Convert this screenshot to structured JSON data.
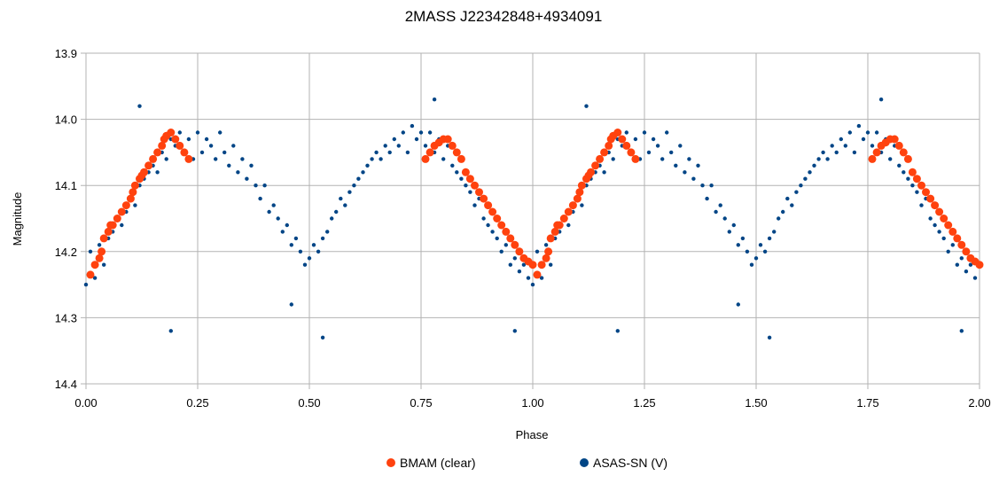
{
  "chart_data": {
    "type": "scatter",
    "title": "2MASS J22342848+4934091",
    "xlabel": "Phase",
    "ylabel": "Magnitude",
    "xlim": [
      0,
      2
    ],
    "ylim": [
      13.9,
      14.4
    ],
    "y_inverted": true,
    "grid": true,
    "legend_position": "bottom",
    "x_ticks": [
      "0.00",
      "0.25",
      "0.50",
      "0.75",
      "1.00",
      "1.25",
      "1.50",
      "1.75",
      "2.00"
    ],
    "y_ticks": [
      "13.9",
      "14.0",
      "14.1",
      "14.2",
      "14.3",
      "14.4"
    ],
    "series": [
      {
        "name": "BMAM (clear)",
        "color": "#ff420e",
        "marker": "circle-large",
        "x": [
          0.01,
          0.02,
          0.03,
          0.035,
          0.04,
          0.05,
          0.055,
          0.06,
          0.07,
          0.08,
          0.09,
          0.1,
          0.105,
          0.11,
          0.12,
          0.125,
          0.13,
          0.14,
          0.15,
          0.16,
          0.17,
          0.175,
          0.18,
          0.19,
          0.2,
          0.21,
          0.22,
          0.23,
          0.76,
          0.77,
          0.78,
          0.79,
          0.8,
          0.81,
          0.82,
          0.83,
          0.84,
          0.85,
          0.86,
          0.87,
          0.88,
          0.89,
          0.9,
          0.91,
          0.92,
          0.93,
          0.94,
          0.95,
          0.96,
          0.97,
          0.98,
          0.99,
          1.0
        ],
        "y": [
          14.235,
          14.22,
          14.21,
          14.2,
          14.18,
          14.17,
          14.16,
          14.16,
          14.15,
          14.14,
          14.13,
          14.12,
          14.11,
          14.1,
          14.09,
          14.085,
          14.08,
          14.07,
          14.06,
          14.05,
          14.04,
          14.03,
          14.025,
          14.02,
          14.03,
          14.04,
          14.05,
          14.06,
          14.06,
          14.05,
          14.04,
          14.035,
          14.03,
          14.03,
          14.04,
          14.05,
          14.06,
          14.08,
          14.09,
          14.1,
          14.11,
          14.12,
          14.13,
          14.14,
          14.15,
          14.16,
          14.17,
          14.18,
          14.19,
          14.2,
          14.21,
          14.215,
          14.22
        ]
      },
      {
        "name": "ASAS-SN (V)",
        "color": "#004586",
        "marker": "circle-small",
        "x": [
          0.0,
          0.01,
          0.02,
          0.03,
          0.04,
          0.05,
          0.06,
          0.07,
          0.08,
          0.09,
          0.1,
          0.11,
          0.12,
          0.13,
          0.14,
          0.15,
          0.16,
          0.17,
          0.18,
          0.19,
          0.2,
          0.21,
          0.22,
          0.23,
          0.24,
          0.25,
          0.26,
          0.27,
          0.28,
          0.29,
          0.3,
          0.31,
          0.32,
          0.33,
          0.34,
          0.35,
          0.36,
          0.37,
          0.38,
          0.39,
          0.4,
          0.41,
          0.42,
          0.43,
          0.44,
          0.45,
          0.46,
          0.47,
          0.48,
          0.49,
          0.5,
          0.51,
          0.52,
          0.53,
          0.54,
          0.55,
          0.56,
          0.57,
          0.58,
          0.59,
          0.6,
          0.61,
          0.62,
          0.63,
          0.64,
          0.65,
          0.66,
          0.67,
          0.68,
          0.69,
          0.7,
          0.71,
          0.72,
          0.73,
          0.74,
          0.75,
          0.76,
          0.77,
          0.78,
          0.79,
          0.8,
          0.81,
          0.82,
          0.83,
          0.84,
          0.85,
          0.86,
          0.87,
          0.88,
          0.89,
          0.9,
          0.91,
          0.92,
          0.93,
          0.94,
          0.95,
          0.96,
          0.97,
          0.98,
          0.99,
          0.19,
          0.12,
          0.53,
          0.46,
          0.78,
          0.96
        ],
        "y": [
          14.25,
          14.2,
          14.24,
          14.19,
          14.22,
          14.18,
          14.17,
          14.15,
          14.16,
          14.14,
          14.12,
          14.13,
          14.1,
          14.09,
          14.08,
          14.07,
          14.08,
          14.05,
          14.06,
          14.03,
          14.04,
          14.02,
          14.05,
          14.03,
          14.06,
          14.02,
          14.05,
          14.03,
          14.04,
          14.06,
          14.02,
          14.05,
          14.07,
          14.04,
          14.08,
          14.06,
          14.09,
          14.07,
          14.1,
          14.12,
          14.1,
          14.14,
          14.13,
          14.15,
          14.17,
          14.16,
          14.19,
          14.18,
          14.2,
          14.22,
          14.21,
          14.19,
          14.2,
          14.18,
          14.17,
          14.15,
          14.14,
          14.12,
          14.13,
          14.11,
          14.1,
          14.09,
          14.08,
          14.07,
          14.06,
          14.05,
          14.06,
          14.04,
          14.05,
          14.03,
          14.04,
          14.02,
          14.05,
          14.01,
          14.03,
          14.02,
          14.04,
          14.02,
          14.05,
          14.03,
          14.06,
          14.04,
          14.07,
          14.08,
          14.09,
          14.1,
          14.11,
          14.13,
          14.12,
          14.15,
          14.16,
          14.17,
          14.18,
          14.2,
          14.19,
          14.22,
          14.21,
          14.23,
          14.22,
          14.24,
          14.32,
          13.98,
          14.33,
          14.28,
          13.97,
          14.32
        ]
      }
    ]
  }
}
